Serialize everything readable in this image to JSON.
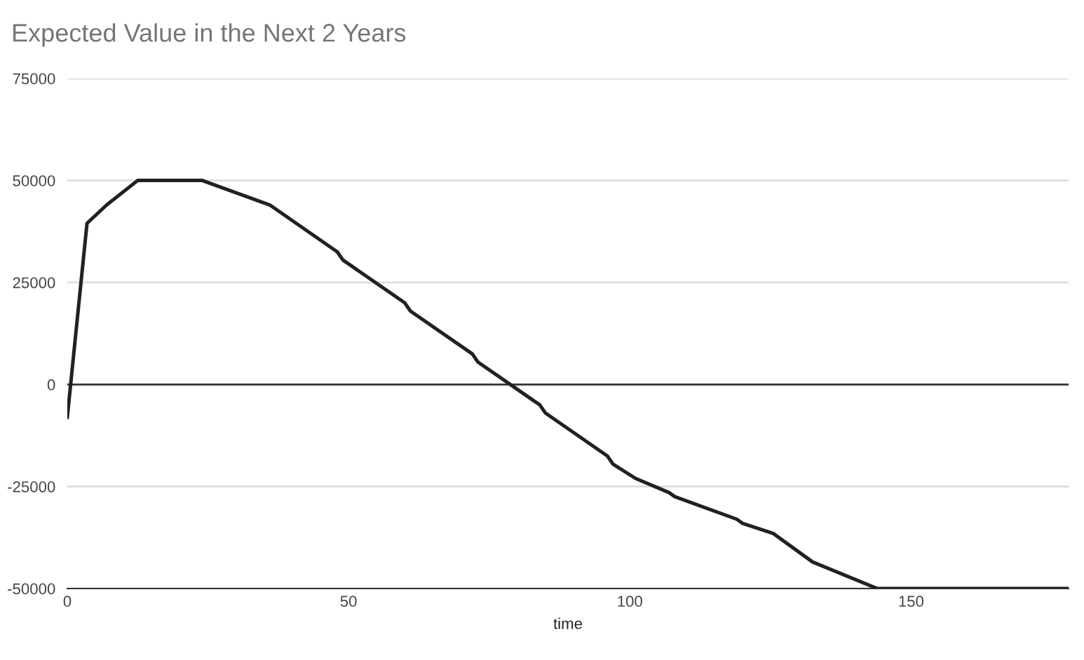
{
  "chart_data": {
    "type": "line",
    "title": "Expected Value in the Next 2 Years",
    "xlabel": "time",
    "x": [
      0,
      3.5,
      7,
      12.5,
      24,
      36,
      48,
      49,
      60,
      61,
      72,
      73,
      84,
      85,
      96,
      97,
      101,
      107,
      108,
      119,
      120,
      125.5,
      132.5,
      144,
      178
    ],
    "series": [
      {
        "color": "#212121",
        "values": [
          -8000,
          39500,
          44000,
          50000,
          50000,
          44000,
          32500,
          30500,
          20000,
          18000,
          7500,
          5500,
          -5000,
          -7000,
          -17500,
          -19500,
          -23000,
          -26500,
          -27500,
          -33000,
          -34000,
          -36500,
          -43500,
          -50000,
          -50000
        ]
      }
    ],
    "xlim": [
      0,
      178
    ],
    "xticks": [
      0,
      50,
      100,
      150
    ],
    "ylim": [
      -50000,
      75000
    ],
    "yticks": [
      -50000,
      -25000,
      0,
      25000,
      50000,
      75000
    ],
    "grid": "y",
    "ref_lines": [
      {
        "axis": "y",
        "value": 0,
        "color": "#333333"
      }
    ],
    "legend": false,
    "marker": "none",
    "line_style": "solid"
  }
}
